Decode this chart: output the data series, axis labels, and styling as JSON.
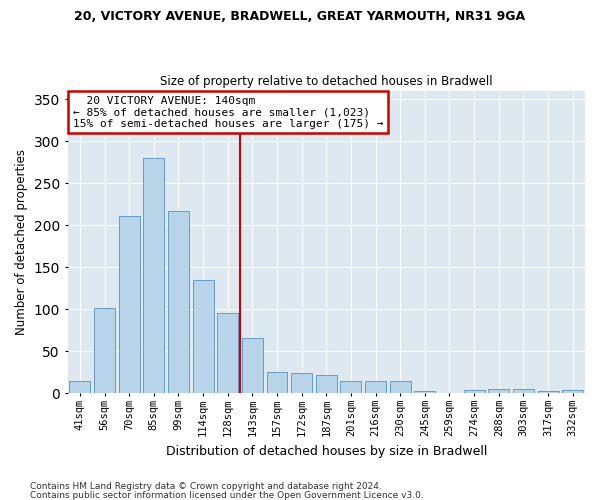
{
  "title1": "20, VICTORY AVENUE, BRADWELL, GREAT YARMOUTH, NR31 9GA",
  "title2": "Size of property relative to detached houses in Bradwell",
  "xlabel": "Distribution of detached houses by size in Bradwell",
  "ylabel": "Number of detached properties",
  "categories": [
    "41sqm",
    "56sqm",
    "70sqm",
    "85sqm",
    "99sqm",
    "114sqm",
    "128sqm",
    "143sqm",
    "157sqm",
    "172sqm",
    "187sqm",
    "201sqm",
    "216sqm",
    "230sqm",
    "245sqm",
    "259sqm",
    "274sqm",
    "288sqm",
    "303sqm",
    "317sqm",
    "332sqm"
  ],
  "values": [
    14,
    102,
    211,
    280,
    217,
    135,
    96,
    66,
    25,
    24,
    22,
    14,
    15,
    15,
    3,
    0,
    4,
    5,
    5,
    3,
    4
  ],
  "bar_color": "#b8d4e8",
  "bar_edge_color": "#6699cc",
  "annotation_text": "  20 VICTORY AVENUE: 140sqm\n← 85% of detached houses are smaller (1,023)\n15% of semi-detached houses are larger (175) →",
  "annotation_box_color": "#ffffff",
  "annotation_box_edge_color": "#cc0000",
  "vline_color": "#cc0000",
  "ylim": [
    0,
    360
  ],
  "yticks": [
    0,
    50,
    100,
    150,
    200,
    250,
    300,
    350
  ],
  "background_color": "#dde8f0",
  "grid_color": "#ffffff",
  "footer1": "Contains HM Land Registry data © Crown copyright and database right 2024.",
  "footer2": "Contains public sector information licensed under the Open Government Licence v3.0."
}
